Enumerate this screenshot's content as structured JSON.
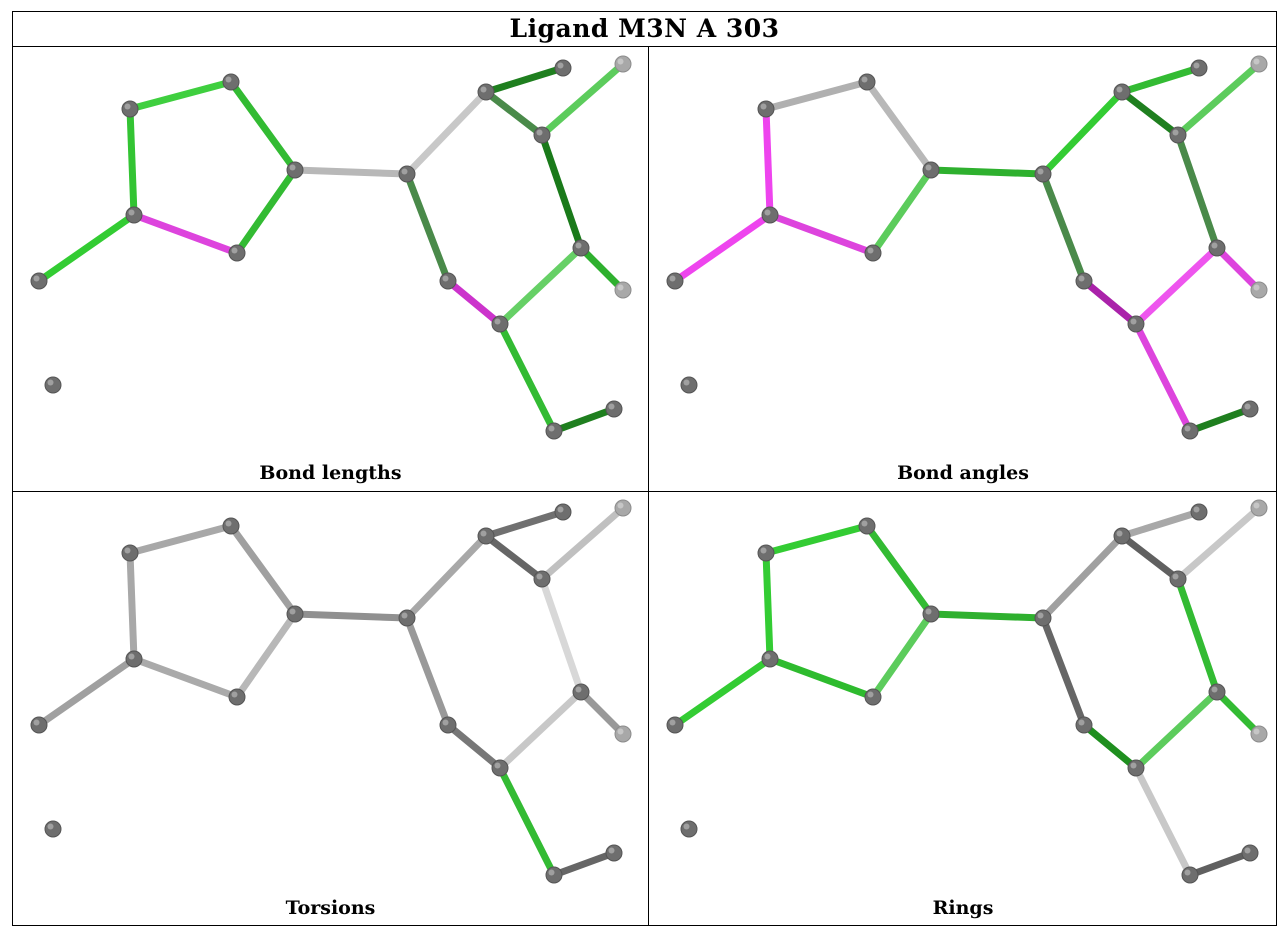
{
  "title": "Ligand M3N A 303",
  "panels": [
    {
      "caption": "Bond lengths",
      "bond_colors": [
        "#3fcf3f",
        "#33c433",
        "#33bb33",
        "#33cc33",
        "#b8b8b8",
        "#c8c8c8",
        "#1f7f1f",
        "#4a8a4a",
        "#5ccc5c",
        "#1a7a1a",
        "#dd44dd",
        "#33bb33",
        "#2eb02e",
        "#cc33cc",
        "#66d066",
        "#4a8a4a",
        "#33bb33",
        "#1f7f1f"
      ]
    },
    {
      "caption": "Bond angles",
      "bond_colors": [
        "#b0b0b0",
        "#ee44ee",
        "#b8b8b8",
        "#ee44ee",
        "#2eb02e",
        "#33cc33",
        "#33bb33",
        "#1f7f1f",
        "#5ccc5c",
        "#4a8a4a",
        "#dd44dd",
        "#5ccc5c",
        "#dd44dd",
        "#aa22aa",
        "#ee55ee",
        "#4a8a4a",
        "#dd44dd",
        "#1f7f1f"
      ]
    },
    {
      "caption": "Torsions",
      "bond_colors": [
        "#a8a8a8",
        "#a8a8a8",
        "#a0a0a0",
        "#a0a0a0",
        "#909090",
        "#a8a8a8",
        "#707070",
        "#666666",
        "#c0c0c0",
        "#d8d8d8",
        "#aaaaaa",
        "#b8b8b8",
        "#999999",
        "#777777",
        "#c8c8c8",
        "#999999",
        "#33bb33",
        "#666666"
      ]
    },
    {
      "caption": "Rings",
      "bond_colors": [
        "#33cc33",
        "#33cc33",
        "#33bb33",
        "#33cc33",
        "#2eb02e",
        "#a0a0a0",
        "#a8a8a8",
        "#606060",
        "#c8c8c8",
        "#33bb33",
        "#2ebb2e",
        "#5ccc5c",
        "#33bb33",
        "#1f8f1f",
        "#5ccc5c",
        "#666666",
        "#c8c8c8",
        "#606060"
      ]
    }
  ]
}
